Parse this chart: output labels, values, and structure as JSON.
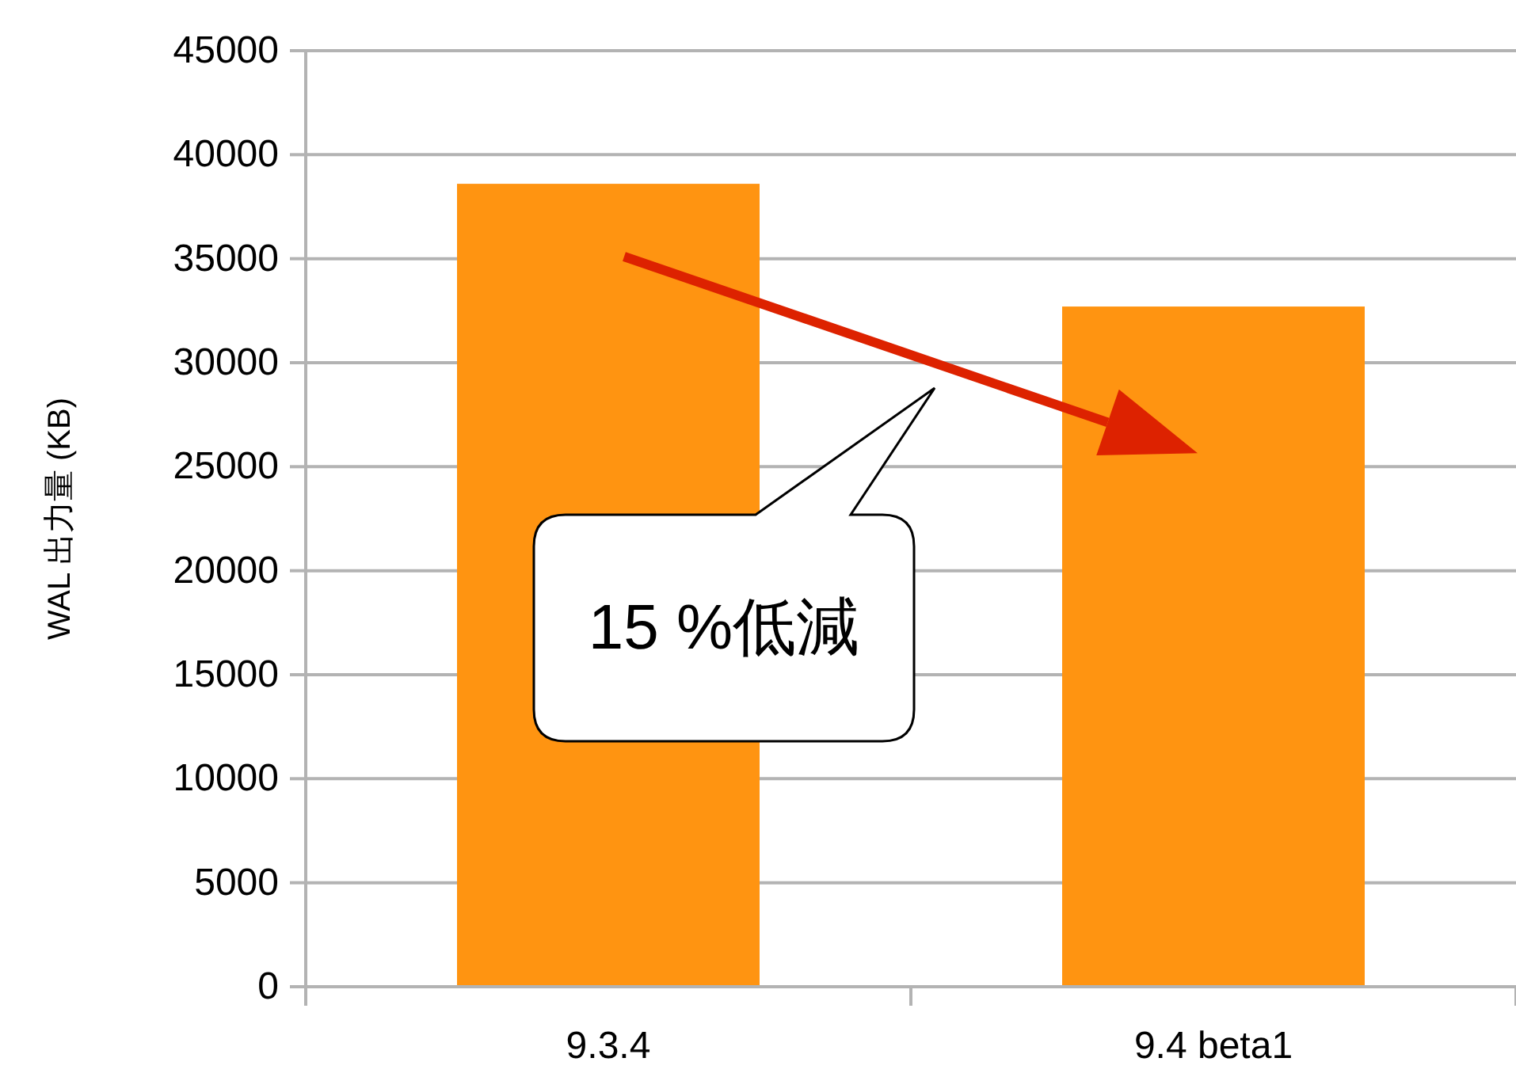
{
  "chart_data": {
    "type": "bar",
    "ylabel": "WAL 出力量 (KB)",
    "categories": [
      "9.3.4",
      "9.4 beta1"
    ],
    "values": [
      38600,
      32700
    ],
    "color": "#ff9411",
    "ylim": [
      0,
      45000
    ],
    "yticks": [
      0,
      5000,
      10000,
      15000,
      20000,
      25000,
      30000,
      35000,
      40000,
      45000
    ],
    "grid": "y",
    "annotations": [
      "15 %低減"
    ]
  }
}
